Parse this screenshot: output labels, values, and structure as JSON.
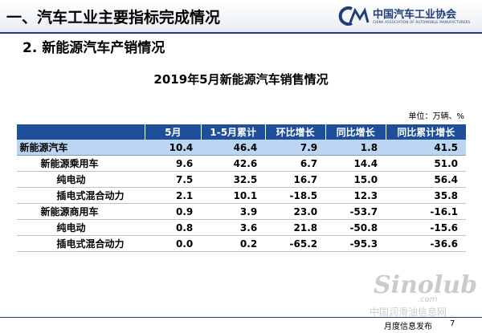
{
  "header": {
    "title": "一、汽车工业主要指标完成情况",
    "logo": "中国汽车工业协会",
    "logo_en": "CHINA ASSOCIATION OF AUTOMOBILE MANUFACTURERS"
  },
  "subtitle": "2. 新能源汽车产销情况",
  "table": {
    "title": "2019年5月新能源汽车销售情况",
    "unit": "单位：万辆、%",
    "columns": [
      "",
      "5月",
      "1-5月累计",
      "环比增长",
      "同比增长",
      "同比累计增长"
    ],
    "rows": [
      [
        "新能源汽车",
        "10.4",
        "46.4",
        "7.9",
        "1.8",
        "41.5"
      ],
      [
        "新能源乘用车",
        "9.6",
        "42.6",
        "6.7",
        "14.4",
        "51.0"
      ],
      [
        "纯电动",
        "7.5",
        "32.5",
        "16.7",
        "15.0",
        "56.4"
      ],
      [
        "插电式混合动力",
        "2.1",
        "10.1",
        "-18.5",
        "12.3",
        "35.8"
      ],
      [
        "新能源商用车",
        "0.9",
        "3.9",
        "23.0",
        "-53.7",
        "-16.1"
      ],
      [
        "纯电动",
        "0.8",
        "3.6",
        "21.8",
        "-50.8",
        "-15.6"
      ],
      [
        "插电式混合动力",
        "0.0",
        "0.2",
        "-65.2",
        "-95.3",
        "-36.6"
      ]
    ]
  },
  "footer": {
    "text": "月度信息发布",
    "page": "7"
  },
  "watermark": {
    "brand": "Sinolub",
    "domain": ".com",
    "name": "中国润滑油信息网"
  }
}
